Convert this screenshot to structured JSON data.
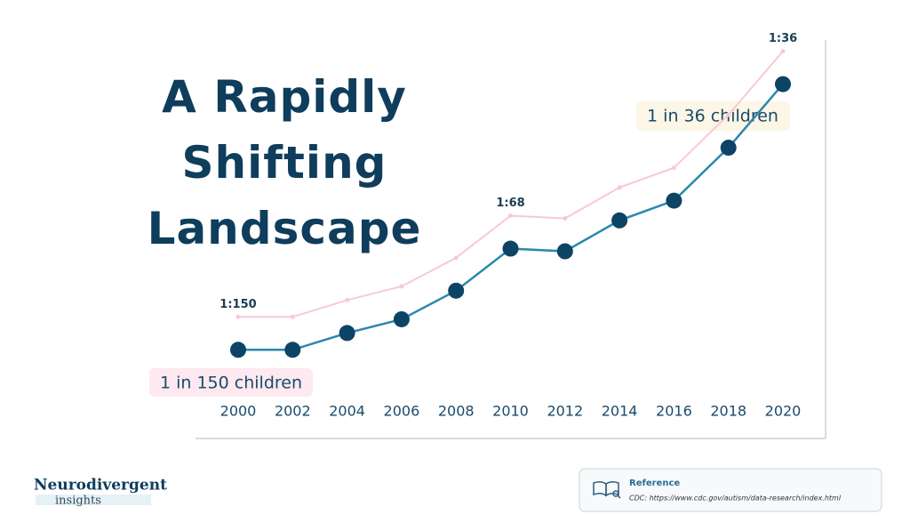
{
  "chart_data": {
    "type": "line",
    "title": "A Rapidly Shifting Landscape",
    "categories": [
      "2000",
      "2002",
      "2004",
      "2006",
      "2008",
      "2010",
      "2012",
      "2014",
      "2016",
      "2018",
      "2020"
    ],
    "series": [
      {
        "color": "#2a88ad",
        "marker_color": "#0d4466",
        "shadow_color": "#f8c9d5",
        "values": [
          150,
          150,
          125,
          110,
          88,
          68,
          69,
          59,
          54,
          44,
          36
        ],
        "value_labels": [
          "1:150",
          null,
          null,
          null,
          null,
          "1:68",
          null,
          null,
          null,
          null,
          "1:36"
        ]
      }
    ],
    "scale": "reciprocal",
    "ylim": [
      250,
      30
    ],
    "annotations": [
      "1 in 150 children",
      "1 in 36 children"
    ]
  },
  "logo": {
    "name": "Neurodivergent",
    "tagline": "insights"
  },
  "reference": {
    "heading": "Reference",
    "text": "CDC: https://www.cdc.gov/autism/data-research/index.html"
  }
}
